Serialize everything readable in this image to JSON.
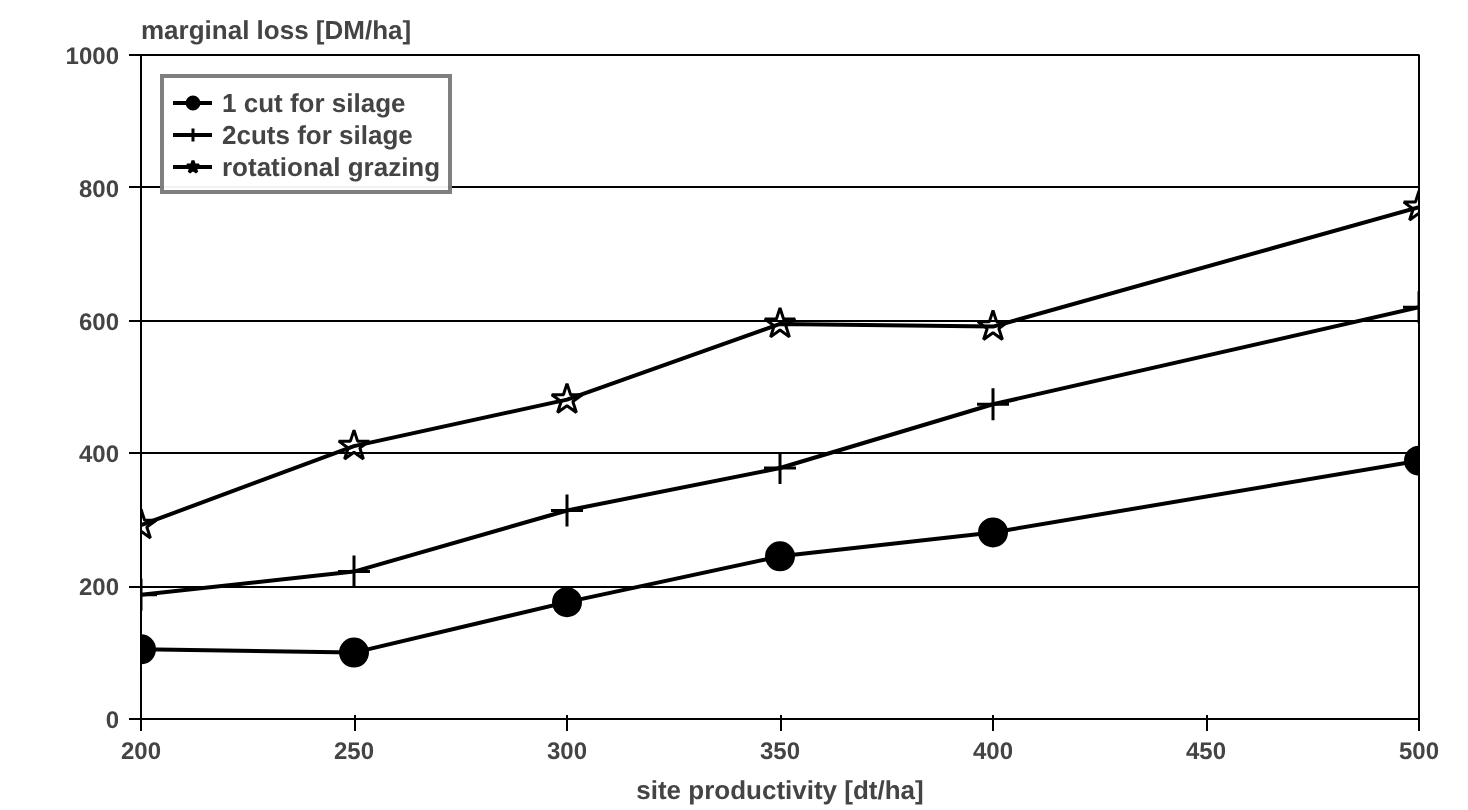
{
  "chart_data": {
    "type": "line",
    "xlabel": "site productivity [dt/ha]",
    "ylabel": "marginal loss [DM/ha]",
    "x": [
      200,
      250,
      300,
      350,
      400,
      500
    ],
    "series": [
      {
        "name": "1 cut for silage",
        "color": "#000000",
        "marker": "circle",
        "values": [
          105,
          100,
          176,
          245,
          281,
          389
        ]
      },
      {
        "name": "2cuts for silage",
        "color": "#000000",
        "marker": "cross",
        "values": [
          187,
          222,
          314,
          378,
          474,
          620
        ]
      },
      {
        "name": "rotational grazing",
        "color": "#000000",
        "marker": "star",
        "values": [
          292,
          411,
          481,
          595,
          591,
          771
        ]
      }
    ],
    "xlim": [
      200,
      500
    ],
    "ylim": [
      0,
      1000
    ],
    "xticks": [
      200,
      250,
      300,
      350,
      400,
      450,
      500
    ],
    "yticks": [
      0,
      200,
      400,
      600,
      800,
      1000
    ],
    "grid": "y",
    "legend": "top left",
    "line_style": "solid"
  }
}
